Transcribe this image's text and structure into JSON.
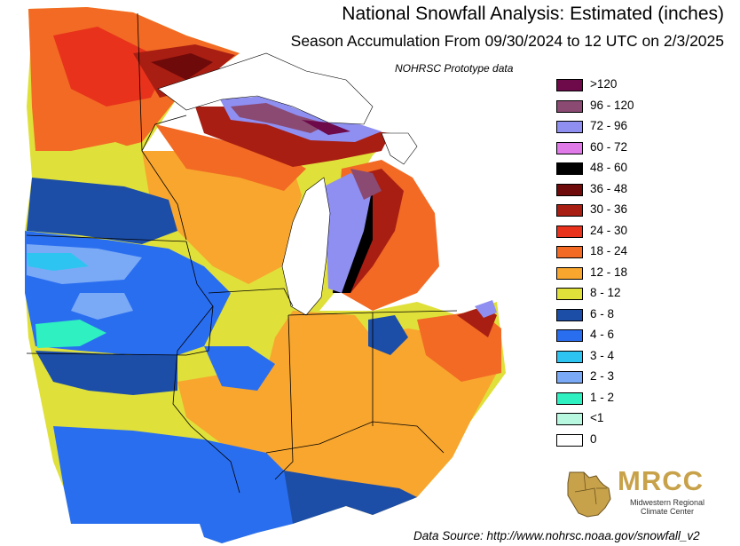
{
  "header": {
    "title": "National Snowfall Analysis: Estimated (inches)",
    "subtitle": "Season Accumulation From 09/30/2024 to 12 UTC on 2/3/2025",
    "note": "NOHRSC Prototype data"
  },
  "legend": {
    "items": [
      {
        "label": ">120",
        "color": "#6e0a4a"
      },
      {
        "label": "96 - 120",
        "color": "#8a4a72"
      },
      {
        "label": "72 - 96",
        "color": "#8f8ff2"
      },
      {
        "label": "60 - 72",
        "color": "#e07ae8"
      },
      {
        "label": "48 - 60",
        "color": "#000000"
      },
      {
        "label": "36 - 48",
        "color": "#6e0a0a"
      },
      {
        "label": "30 - 36",
        "color": "#a81e12"
      },
      {
        "label": "24 - 30",
        "color": "#e8321c"
      },
      {
        "label": "18 - 24",
        "color": "#f26a24"
      },
      {
        "label": "12 - 18",
        "color": "#f8a62e"
      },
      {
        "label": "8 - 12",
        "color": "#e0e03a"
      },
      {
        "label": "6 - 8",
        "color": "#1c4ea8"
      },
      {
        "label": "4 - 6",
        "color": "#2a6ef0"
      },
      {
        "label": "3 - 4",
        "color": "#2ec4f2"
      },
      {
        "label": "2 - 3",
        "color": "#7aaaf6"
      },
      {
        "label": "1 - 2",
        "color": "#2ef0c0"
      },
      {
        "label": "<1",
        "color": "#b8f8e0"
      },
      {
        "label": "0",
        "color": "#ffffff"
      }
    ]
  },
  "logo": {
    "name": "MRCC",
    "subtitle": "Midwestern Regional Climate Center"
  },
  "footer": {
    "source": "Data Source: http://www.nohrsc.noaa.gov/snowfall_v2"
  }
}
